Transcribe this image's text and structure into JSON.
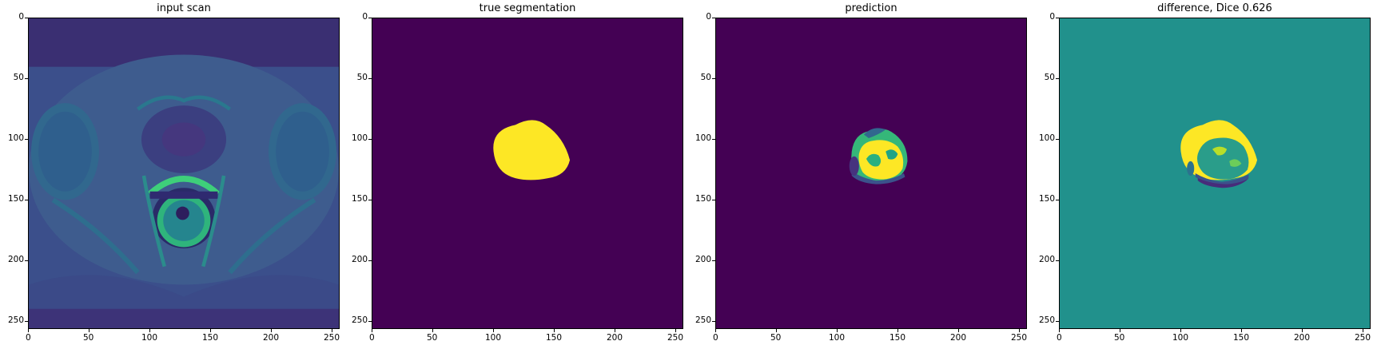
{
  "figure": {
    "panels": [
      {
        "id": "input-scan",
        "title": "input scan"
      },
      {
        "id": "true-segmentation",
        "title": "true segmentation"
      },
      {
        "id": "prediction",
        "title": "prediction"
      },
      {
        "id": "difference",
        "title": "difference, Dice 0.626"
      }
    ],
    "ticks": [
      "0",
      "50",
      "100",
      "150",
      "200",
      "250"
    ]
  },
  "chart_data": [
    {
      "type": "heatmap",
      "title": "input scan",
      "xlim": [
        0,
        256
      ],
      "ylim": [
        256,
        0
      ],
      "xticks": [
        0,
        50,
        100,
        150,
        200,
        250
      ],
      "yticks": [
        0,
        50,
        100,
        150,
        200,
        250
      ],
      "colormap": "viridis"
    },
    {
      "type": "heatmap",
      "title": "true segmentation",
      "xlim": [
        0,
        256
      ],
      "ylim": [
        256,
        0
      ],
      "xticks": [
        0,
        50,
        100,
        150,
        200,
        250
      ],
      "yticks": [
        0,
        50,
        100,
        150,
        200,
        250
      ],
      "colormap": "viridis"
    },
    {
      "type": "heatmap",
      "title": "prediction",
      "xlim": [
        0,
        256
      ],
      "ylim": [
        256,
        0
      ],
      "xticks": [
        0,
        50,
        100,
        150,
        200,
        250
      ],
      "yticks": [
        0,
        50,
        100,
        150,
        200,
        250
      ],
      "colormap": "viridis"
    },
    {
      "type": "heatmap",
      "title": "difference, Dice 0.626",
      "xlim": [
        0,
        256
      ],
      "ylim": [
        256,
        0
      ],
      "xticks": [
        0,
        50,
        100,
        150,
        200,
        250
      ],
      "yticks": [
        0,
        50,
        100,
        150,
        200,
        250
      ],
      "colormap": "viridis"
    }
  ],
  "colors": {
    "viridis_low": "#440154",
    "viridis_mid": "#21918c",
    "viridis_high": "#fde725",
    "viridis_teal": "#35b779"
  }
}
